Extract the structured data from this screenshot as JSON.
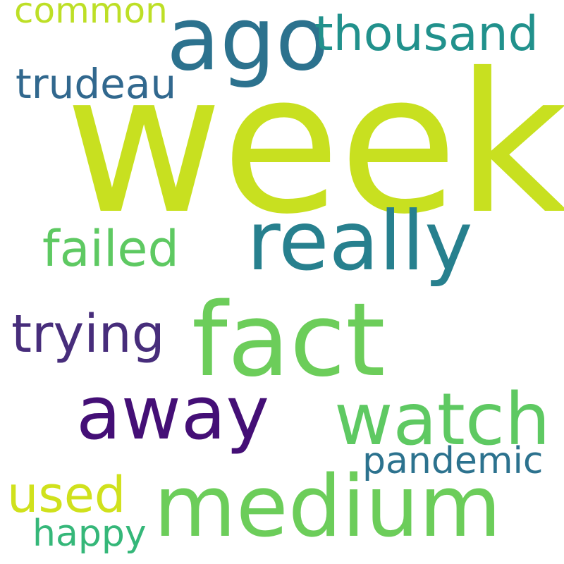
{
  "words": {
    "week": {
      "text": "week",
      "color": "#c8e020"
    },
    "ago": {
      "text": "ago",
      "color": "#2c728e"
    },
    "thousand": {
      "text": "thousand",
      "color": "#21918c"
    },
    "common": {
      "text": "common",
      "color": "#bddf26"
    },
    "trudeau": {
      "text": "trudeau",
      "color": "#31688e"
    },
    "really": {
      "text": "really",
      "color": "#27808e"
    },
    "failed": {
      "text": "failed",
      "color": "#5ec962"
    },
    "fact": {
      "text": "fact",
      "color": "#6ccd5a"
    },
    "trying": {
      "text": "trying",
      "color": "#472d7b"
    },
    "away": {
      "text": "away",
      "color": "#440f76"
    },
    "watch": {
      "text": "watch",
      "color": "#5ec962"
    },
    "pandemic": {
      "text": "pandemic",
      "color": "#2c728e"
    },
    "used": {
      "text": "used",
      "color": "#d0e11c"
    },
    "medium": {
      "text": "medium",
      "color": "#6ccd5a"
    },
    "happy": {
      "text": "happy",
      "color": "#35b779"
    }
  }
}
